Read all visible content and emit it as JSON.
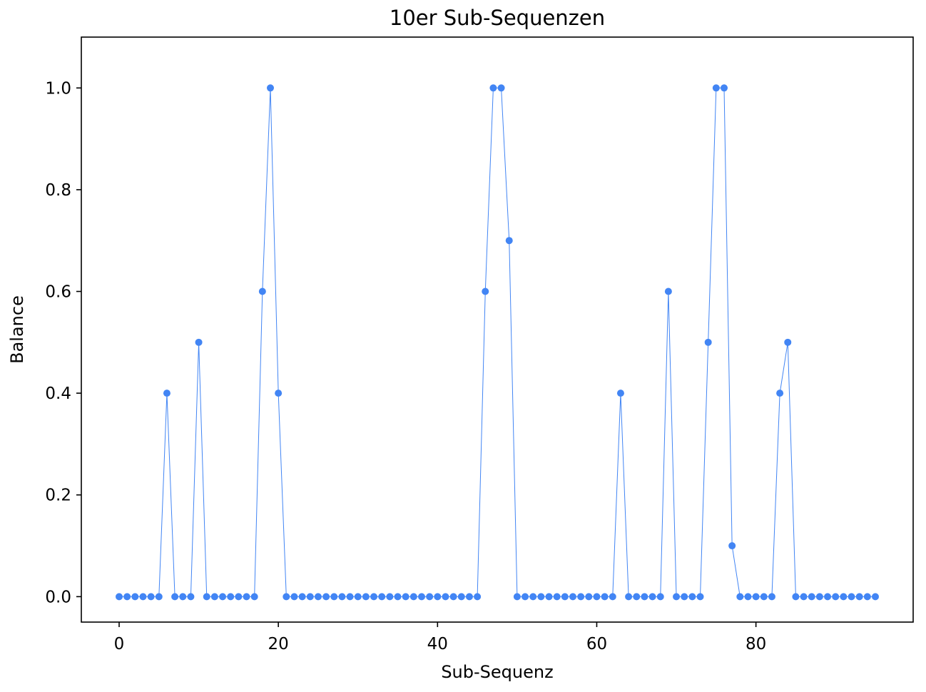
{
  "chart_data": {
    "type": "line",
    "title": "10er Sub-Sequenzen",
    "xlabel": "Sub-Sequenz",
    "ylabel": "Balance",
    "xlim": [
      -4.75,
      99.75
    ],
    "ylim": [
      -0.05,
      1.1
    ],
    "xticks": [
      0,
      20,
      40,
      60,
      80
    ],
    "yticks": [
      0.0,
      0.2,
      0.4,
      0.6,
      0.8,
      1.0
    ],
    "ytick_labels": [
      "0.0",
      "0.2",
      "0.4",
      "0.6",
      "0.8",
      "1.0"
    ],
    "grid": false,
    "series": [
      {
        "color": "#4285f4",
        "marker": "circle",
        "values": [
          0,
          0,
          0,
          0,
          0,
          0,
          0.4,
          0,
          0,
          0,
          0.5,
          0,
          0,
          0,
          0,
          0,
          0,
          0,
          0.6,
          1.0,
          0.4,
          0,
          0,
          0,
          0,
          0,
          0,
          0,
          0,
          0,
          0,
          0,
          0,
          0,
          0,
          0,
          0,
          0,
          0,
          0,
          0,
          0,
          0,
          0,
          0,
          0,
          0.6,
          1.0,
          1.0,
          0.7,
          0,
          0,
          0,
          0,
          0,
          0,
          0,
          0,
          0,
          0,
          0,
          0,
          0,
          0.4,
          0,
          0,
          0,
          0,
          0,
          0.6,
          0,
          0,
          0,
          0,
          0.5,
          1.0,
          1.0,
          0.1,
          0,
          0,
          0,
          0,
          0,
          0.4,
          0.5,
          0,
          0,
          0,
          0,
          0,
          0,
          0,
          0,
          0,
          0,
          0
        ]
      }
    ]
  }
}
